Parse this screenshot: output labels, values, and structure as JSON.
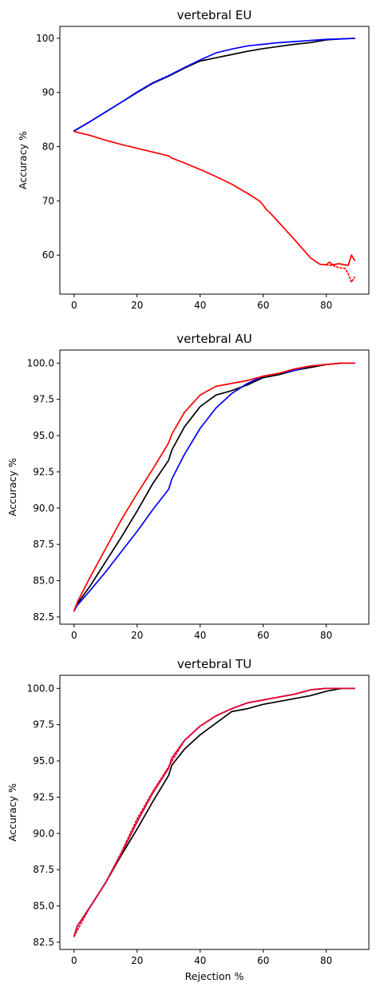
{
  "chart_data": [
    {
      "type": "line",
      "title": "vertebral EU",
      "xlabel": "",
      "ylabel": "Accuracy %",
      "xlim": [
        -4.5,
        93.5
      ],
      "ylim": [
        52.8,
        102.2
      ],
      "xticks": [
        0,
        20,
        40,
        60,
        80
      ],
      "xtick_labels": [
        "0",
        "20",
        "40",
        "60",
        "80"
      ],
      "yticks": [
        60,
        70,
        80,
        90,
        100
      ],
      "ytick_labels": [
        "60",
        "70",
        "80",
        "90",
        "100"
      ],
      "grid": false,
      "series": [
        {
          "color": "#000000",
          "style": "solid",
          "x": [
            0,
            5,
            10,
            15,
            20,
            25,
            30,
            31,
            35,
            40,
            45,
            50,
            55,
            60,
            65,
            70,
            75,
            80,
            85,
            89
          ],
          "y": [
            82.9,
            84.6,
            86.4,
            88.2,
            90.0,
            91.7,
            93.0,
            93.3,
            94.5,
            95.8,
            96.4,
            97.0,
            97.6,
            98.1,
            98.5,
            98.9,
            99.2,
            99.7,
            99.9,
            100.0
          ]
        },
        {
          "color": "#0000ff",
          "style": "solid",
          "x": [
            0,
            5,
            10,
            15,
            20,
            25,
            30,
            31,
            35,
            40,
            45,
            50,
            55,
            60,
            65,
            70,
            75,
            80,
            85,
            89
          ],
          "y": [
            82.9,
            84.6,
            86.4,
            88.2,
            90.1,
            91.8,
            93.1,
            93.4,
            94.6,
            96.0,
            97.3,
            98.0,
            98.6,
            98.9,
            99.2,
            99.4,
            99.6,
            99.8,
            99.9,
            100.0
          ]
        },
        {
          "color": "#ff0000",
          "style": "solid",
          "x": [
            0,
            5,
            10,
            15,
            20,
            25,
            30,
            31,
            35,
            40,
            45,
            50,
            55,
            59,
            60,
            61,
            62,
            65,
            70,
            75,
            78,
            80,
            81,
            82,
            84,
            86,
            87,
            88,
            89
          ],
          "y": [
            82.8,
            82.1,
            81.2,
            80.4,
            79.7,
            79.0,
            78.3,
            77.9,
            77.0,
            75.8,
            74.5,
            73.1,
            71.4,
            69.9,
            69.2,
            68.4,
            67.9,
            66.0,
            62.8,
            59.5,
            58.3,
            58.2,
            58.7,
            58.2,
            58.4,
            58.2,
            58.1,
            60.0,
            59.0
          ]
        },
        {
          "color": "#ff0000",
          "style": "dotted",
          "x": [
            80,
            82,
            84,
            86,
            87,
            88,
            89
          ],
          "y": [
            58.2,
            58.1,
            57.7,
            57.5,
            56.5,
            55.0,
            55.9
          ]
        }
      ]
    },
    {
      "type": "line",
      "title": "vertebral AU",
      "xlabel": "",
      "ylabel": "Accuracy %",
      "xlim": [
        -4.5,
        93.5
      ],
      "ylim": [
        82.0,
        100.9
      ],
      "xticks": [
        0,
        20,
        40,
        60,
        80
      ],
      "xtick_labels": [
        "0",
        "20",
        "40",
        "60",
        "80"
      ],
      "yticks": [
        82.5,
        85.0,
        87.5,
        90.0,
        92.5,
        95.0,
        97.5,
        100.0
      ],
      "ytick_labels": [
        "82.5",
        "85.0",
        "87.5",
        "90.0",
        "92.5",
        "95.0",
        "97.5",
        "100.0"
      ],
      "grid": false,
      "series": [
        {
          "color": "#000000",
          "style": "solid",
          "x": [
            0,
            1,
            5,
            10,
            15,
            20,
            25,
            30,
            31,
            35,
            40,
            45,
            50,
            55,
            60,
            65,
            70,
            75,
            80,
            85,
            89
          ],
          "y": [
            82.9,
            83.4,
            84.6,
            86.3,
            88.0,
            89.8,
            91.7,
            93.3,
            94.0,
            95.6,
            97.0,
            97.8,
            98.1,
            98.5,
            99.0,
            99.2,
            99.5,
            99.7,
            99.9,
            100.0,
            100.0
          ]
        },
        {
          "color": "#0000ff",
          "style": "solid",
          "x": [
            0,
            1,
            5,
            10,
            15,
            20,
            25,
            30,
            31,
            35,
            40,
            45,
            50,
            55,
            60,
            65,
            70,
            75,
            80,
            85,
            89
          ],
          "y": [
            82.9,
            83.3,
            84.3,
            85.6,
            87.0,
            88.4,
            89.9,
            91.3,
            92.0,
            93.7,
            95.5,
            96.9,
            97.9,
            98.6,
            99.1,
            99.3,
            99.5,
            99.8,
            99.9,
            100.0,
            100.0
          ]
        },
        {
          "color": "#ff0000",
          "style": "solid",
          "x": [
            0,
            1,
            5,
            10,
            15,
            20,
            25,
            30,
            31,
            35,
            40,
            45,
            50,
            55,
            60,
            65,
            70,
            75,
            80,
            85,
            89
          ],
          "y": [
            82.9,
            83.5,
            85.2,
            87.2,
            89.2,
            91.0,
            92.7,
            94.5,
            95.1,
            96.6,
            97.8,
            98.4,
            98.6,
            98.8,
            99.1,
            99.3,
            99.6,
            99.8,
            99.9,
            100.0,
            100.0
          ]
        }
      ]
    },
    {
      "type": "line",
      "title": "vertebral TU",
      "xlabel": "Rejection %",
      "ylabel": "Accuracy %",
      "xlim": [
        -4.5,
        93.5
      ],
      "ylim": [
        82.0,
        100.9
      ],
      "xticks": [
        0,
        20,
        40,
        60,
        80
      ],
      "xtick_labels": [
        "0",
        "20",
        "40",
        "60",
        "80"
      ],
      "yticks": [
        82.5,
        85.0,
        87.5,
        90.0,
        92.5,
        95.0,
        97.5,
        100.0
      ],
      "ytick_labels": [
        "82.5",
        "85.0",
        "87.5",
        "90.0",
        "92.5",
        "95.0",
        "97.5",
        "100.0"
      ],
      "grid": false,
      "series": [
        {
          "color": "#000000",
          "style": "solid",
          "x": [
            0,
            1,
            5,
            10,
            15,
            20,
            25,
            30,
            31,
            35,
            40,
            45,
            50,
            55,
            60,
            65,
            70,
            75,
            80,
            85,
            89
          ],
          "y": [
            82.9,
            83.6,
            84.9,
            86.6,
            88.5,
            90.3,
            92.2,
            94.0,
            94.7,
            95.8,
            96.8,
            97.6,
            98.4,
            98.6,
            98.9,
            99.1,
            99.3,
            99.5,
            99.8,
            100.0,
            100.0
          ]
        },
        {
          "color": "#0000ff",
          "style": "solid",
          "x": [
            0,
            1,
            5,
            10,
            15,
            20,
            25,
            30,
            31,
            35,
            40,
            45,
            50,
            55,
            60,
            65,
            70,
            75,
            80,
            85,
            89
          ],
          "y": [
            82.9,
            83.6,
            84.9,
            86.6,
            88.6,
            90.8,
            92.8,
            94.5,
            95.2,
            96.4,
            97.4,
            98.1,
            98.6,
            99.0,
            99.2,
            99.4,
            99.6,
            99.9,
            100.0,
            100.0,
            100.0
          ]
        },
        {
          "color": "#e8002a",
          "style": "solid",
          "x": [
            0,
            1,
            5,
            10,
            15,
            20,
            25,
            30,
            31,
            35,
            40,
            45,
            50,
            55,
            60,
            65,
            70,
            75,
            80,
            85,
            89
          ],
          "y": [
            82.9,
            83.6,
            84.9,
            86.6,
            88.6,
            90.8,
            92.8,
            94.5,
            95.2,
            96.4,
            97.4,
            98.1,
            98.6,
            99.0,
            99.2,
            99.4,
            99.6,
            99.9,
            100.0,
            100.0,
            100.0
          ]
        },
        {
          "color": "#e8002a",
          "style": "dotted",
          "x": [
            0,
            5,
            10,
            15,
            20,
            25,
            30,
            35,
            40,
            45,
            50,
            55,
            60,
            65,
            70,
            75,
            80,
            85,
            89
          ],
          "y": [
            82.9,
            84.9,
            86.6,
            88.7,
            91.0,
            92.9,
            94.6,
            96.4,
            97.4,
            98.1,
            98.6,
            99.0,
            99.2,
            99.4,
            99.6,
            99.9,
            100.0,
            100.0,
            100.0
          ]
        }
      ]
    }
  ]
}
